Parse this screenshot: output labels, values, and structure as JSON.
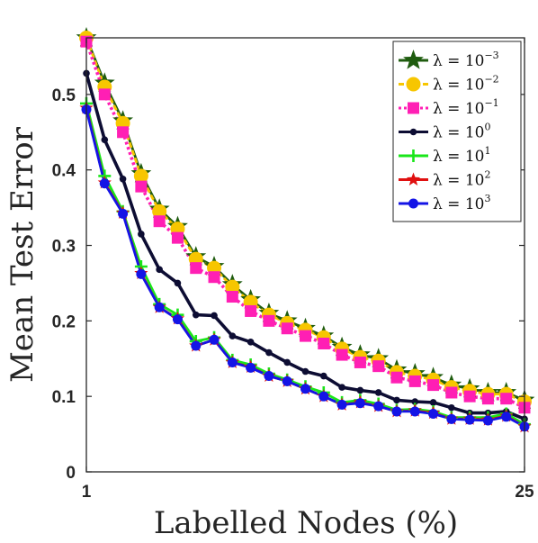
{
  "chart_data": {
    "type": "line",
    "title": "",
    "xlabel": "Labelled Nodes (%)",
    "ylabel": "Mean Test Error",
    "xlim": [
      1,
      25
    ],
    "ylim": [
      0,
      0.575
    ],
    "x_ticks": [
      1,
      25
    ],
    "y_ticks": [
      0,
      0.1,
      0.2,
      0.3,
      0.4,
      0.5
    ],
    "grid": false,
    "legend_position": "top-right",
    "x": [
      1,
      2,
      3,
      4,
      5,
      6,
      7,
      8,
      9,
      10,
      11,
      12,
      13,
      14,
      15,
      16,
      17,
      18,
      19,
      20,
      21,
      22,
      23,
      24,
      25
    ],
    "series": [
      {
        "name": "λ = 10",
        "exp": "−3",
        "color": "#1f5c0f",
        "marker": "star",
        "dash": "none",
        "values": [
          0.575,
          0.515,
          0.465,
          0.395,
          0.348,
          0.325,
          0.285,
          0.272,
          0.248,
          0.228,
          0.21,
          0.2,
          0.19,
          0.18,
          0.165,
          0.155,
          0.15,
          0.135,
          0.13,
          0.125,
          0.115,
          0.11,
          0.105,
          0.105,
          0.095
        ]
      },
      {
        "name": "λ = 10",
        "exp": "−2",
        "color": "#f7c600",
        "marker": "circle",
        "dash": "6,3",
        "values": [
          0.575,
          0.51,
          0.462,
          0.392,
          0.345,
          0.322,
          0.282,
          0.27,
          0.245,
          0.225,
          0.208,
          0.197,
          0.188,
          0.178,
          0.163,
          0.152,
          0.147,
          0.132,
          0.127,
          0.122,
          0.112,
          0.107,
          0.103,
          0.103,
          0.093
        ]
      },
      {
        "name": "λ = 10",
        "exp": "−1",
        "color": "#ff1fb4",
        "marker": "square",
        "dash": "3,3",
        "values": [
          0.57,
          0.5,
          0.45,
          0.378,
          0.332,
          0.31,
          0.27,
          0.258,
          0.232,
          0.213,
          0.2,
          0.19,
          0.18,
          0.17,
          0.155,
          0.145,
          0.14,
          0.125,
          0.12,
          0.115,
          0.105,
          0.1,
          0.097,
          0.097,
          0.085
        ]
      },
      {
        "name": "λ = 10",
        "exp": "0",
        "color": "#0d0d33",
        "marker": "circle-small",
        "dash": "none",
        "values": [
          0.528,
          0.44,
          0.388,
          0.315,
          0.268,
          0.25,
          0.208,
          0.207,
          0.18,
          0.172,
          0.158,
          0.145,
          0.133,
          0.127,
          0.112,
          0.108,
          0.105,
          0.095,
          0.093,
          0.092,
          0.085,
          0.078,
          0.078,
          0.08,
          0.07
        ]
      },
      {
        "name": "λ = 10",
        "exp": "1",
        "color": "#19e619",
        "marker": "plus",
        "dash": "none",
        "values": [
          0.488,
          0.392,
          0.345,
          0.272,
          0.222,
          0.208,
          0.173,
          0.178,
          0.148,
          0.142,
          0.13,
          0.122,
          0.113,
          0.105,
          0.092,
          0.095,
          0.09,
          0.082,
          0.083,
          0.08,
          0.072,
          0.072,
          0.072,
          0.077,
          0.063
        ]
      },
      {
        "name": "λ = 10",
        "exp": "2",
        "color": "#e01010",
        "marker": "star",
        "dash": "none",
        "values": [
          0.482,
          0.383,
          0.343,
          0.263,
          0.218,
          0.203,
          0.167,
          0.175,
          0.145,
          0.139,
          0.127,
          0.12,
          0.11,
          0.1,
          0.089,
          0.092,
          0.087,
          0.08,
          0.081,
          0.078,
          0.07,
          0.07,
          0.069,
          0.074,
          0.06
        ]
      },
      {
        "name": "λ = 10",
        "exp": "3",
        "color": "#1414e6",
        "marker": "circle",
        "dash": "none",
        "values": [
          0.48,
          0.382,
          0.342,
          0.262,
          0.218,
          0.202,
          0.167,
          0.175,
          0.145,
          0.138,
          0.127,
          0.12,
          0.11,
          0.1,
          0.089,
          0.091,
          0.087,
          0.08,
          0.08,
          0.077,
          0.07,
          0.069,
          0.068,
          0.073,
          0.06
        ]
      }
    ]
  }
}
